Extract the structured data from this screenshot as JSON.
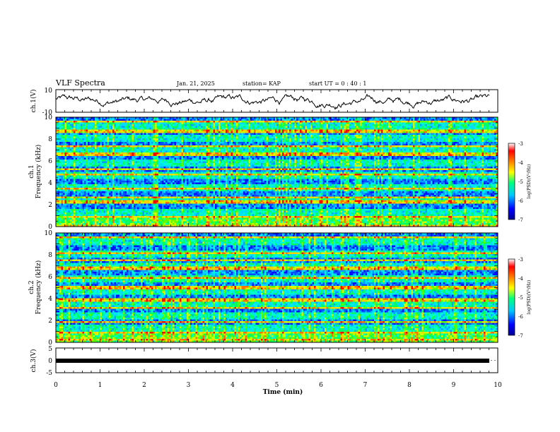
{
  "header": {
    "title": "VLF Spectra",
    "date": "Jan. 21, 2025",
    "station": "station= KAP",
    "start": "start  UT =   0 : 40 : 1"
  },
  "chart_data": {
    "type": "heatmap",
    "xlabel": "Time  (min)",
    "xlim": [
      0,
      10
    ],
    "x_ticks": [
      "0",
      "1",
      "2",
      "3",
      "4",
      "5",
      "6",
      "7",
      "8",
      "9",
      "10"
    ],
    "panels": [
      {
        "id": "ch1-waveform",
        "type": "line",
        "ylabel": "ch.1(V)",
        "ylim": [
          -10,
          10
        ],
        "y_ticks": [
          "10",
          "-10"
        ]
      },
      {
        "id": "ch1-spectrogram",
        "type": "heatmap",
        "ylabel_top": "ch.1",
        "ylabel": "Frequency  (kHz)",
        "ylim": [
          0,
          10
        ],
        "y_ticks": [
          "0",
          "2",
          "4",
          "6",
          "8",
          "10"
        ]
      },
      {
        "id": "ch2-spectrogram",
        "type": "heatmap",
        "ylabel_top": "ch.2",
        "ylabel": "Frequency  (kHz)",
        "ylim": [
          0,
          10
        ],
        "y_ticks": [
          "0",
          "2",
          "4",
          "6",
          "8",
          "10"
        ]
      },
      {
        "id": "ch3-waveform",
        "type": "line",
        "ylabel": "ch.3(V)",
        "ylim": [
          -5,
          5
        ],
        "y_ticks": [
          "5",
          "0",
          "-5"
        ]
      }
    ],
    "colorbar": {
      "label": "log(PSD)(V²/Hz)",
      "range": [
        -7,
        -3
      ],
      "ticks": [
        "-3",
        "-4",
        "-5",
        "-6",
        "-7"
      ],
      "colors": [
        "#000090",
        "#0000ff",
        "#00c8ff",
        "#00ff80",
        "#ffff00",
        "#ff8000",
        "#ff0000",
        "#ffffff"
      ]
    },
    "ch1_bands_khz": [
      0.2,
      0.9,
      2.2,
      2.8,
      3.5,
      4.9,
      5.3,
      6.6,
      7.4,
      8.7,
      9.6
    ],
    "ch2_bands_khz": [
      0.4,
      1.0,
      1.9,
      3.2,
      3.9,
      5.0,
      5.9,
      6.8,
      7.6,
      8.2,
      9.7
    ]
  }
}
